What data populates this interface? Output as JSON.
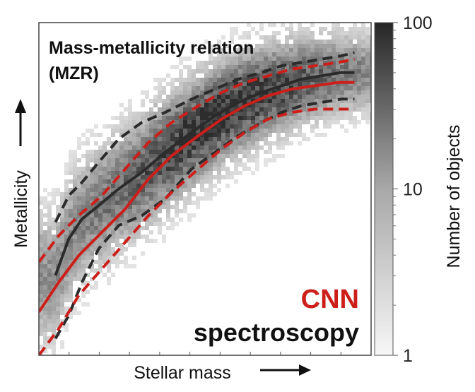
{
  "chart_data": {
    "type": "heatmap",
    "title_line1": "Mass-metallicity relation",
    "title_line2": "(MZR)",
    "xlabel": "Stellar mass",
    "ylabel": "Metallicity",
    "xlim": [
      0,
      1
    ],
    "ylim": [
      0,
      1
    ],
    "colorbar": {
      "label": "Number of objects",
      "scale": "log",
      "range": [
        1,
        100
      ],
      "ticks": [
        "1",
        "10",
        "100"
      ]
    },
    "legend": {
      "cnn": "CNN",
      "spectroscopy": "spectroscopy"
    },
    "colors": {
      "cnn": "#cc1f1a",
      "spectroscopy": "#2b2b2b",
      "frame": "#444444"
    },
    "series": [
      {
        "name": "spectroscopy median",
        "style": "solid",
        "color_key": "spectroscopy",
        "x": [
          0.05,
          0.09,
          0.13,
          0.18,
          0.24,
          0.31,
          0.38,
          0.46,
          0.53,
          0.6,
          0.67,
          0.73,
          0.79,
          0.85,
          0.91,
          0.95
        ],
        "y": [
          0.24,
          0.35,
          0.41,
          0.45,
          0.5,
          0.55,
          0.61,
          0.67,
          0.72,
          0.76,
          0.79,
          0.81,
          0.83,
          0.84,
          0.85,
          0.85
        ]
      },
      {
        "name": "spectroscopy upper",
        "style": "dashed",
        "color_key": "spectroscopy",
        "x": [
          0.05,
          0.09,
          0.13,
          0.18,
          0.24,
          0.31,
          0.38,
          0.46,
          0.53,
          0.6,
          0.67,
          0.73,
          0.79,
          0.85,
          0.91,
          0.95
        ],
        "y": [
          0.4,
          0.48,
          0.52,
          0.58,
          0.65,
          0.7,
          0.73,
          0.77,
          0.8,
          0.83,
          0.85,
          0.87,
          0.88,
          0.89,
          0.9,
          0.91
        ]
      },
      {
        "name": "spectroscopy lower",
        "style": "dashed",
        "color_key": "spectroscopy",
        "x": [
          0.05,
          0.09,
          0.13,
          0.18,
          0.24,
          0.31,
          0.38,
          0.46,
          0.53,
          0.6,
          0.67,
          0.73,
          0.79,
          0.85,
          0.91,
          0.95
        ],
        "y": [
          0.05,
          0.12,
          0.22,
          0.32,
          0.39,
          0.42,
          0.47,
          0.56,
          0.61,
          0.66,
          0.7,
          0.73,
          0.75,
          0.76,
          0.77,
          0.77
        ]
      },
      {
        "name": "CNN median",
        "style": "solid",
        "color_key": "cnn",
        "x": [
          0.0,
          0.06,
          0.12,
          0.19,
          0.26,
          0.33,
          0.4,
          0.48,
          0.55,
          0.62,
          0.69,
          0.76,
          0.83,
          0.9,
          0.95
        ],
        "y": [
          0.13,
          0.22,
          0.3,
          0.37,
          0.44,
          0.53,
          0.6,
          0.66,
          0.71,
          0.75,
          0.78,
          0.8,
          0.81,
          0.82,
          0.82
        ]
      },
      {
        "name": "CNN upper",
        "style": "dashed",
        "color_key": "cnn",
        "x": [
          0.0,
          0.06,
          0.12,
          0.19,
          0.26,
          0.33,
          0.4,
          0.48,
          0.55,
          0.62,
          0.69,
          0.76,
          0.83,
          0.9,
          0.95
        ],
        "y": [
          0.28,
          0.36,
          0.42,
          0.48,
          0.56,
          0.64,
          0.7,
          0.75,
          0.79,
          0.82,
          0.84,
          0.86,
          0.87,
          0.88,
          0.89
        ]
      },
      {
        "name": "CNN lower",
        "style": "dashed",
        "color_key": "cnn",
        "x": [
          0.0,
          0.06,
          0.12,
          0.19,
          0.26,
          0.33,
          0.4,
          0.48,
          0.55,
          0.62,
          0.69,
          0.76,
          0.83,
          0.9,
          0.95
        ],
        "y": [
          0.0,
          0.08,
          0.18,
          0.26,
          0.34,
          0.42,
          0.49,
          0.56,
          0.62,
          0.67,
          0.71,
          0.73,
          0.74,
          0.74,
          0.74
        ]
      }
    ]
  }
}
